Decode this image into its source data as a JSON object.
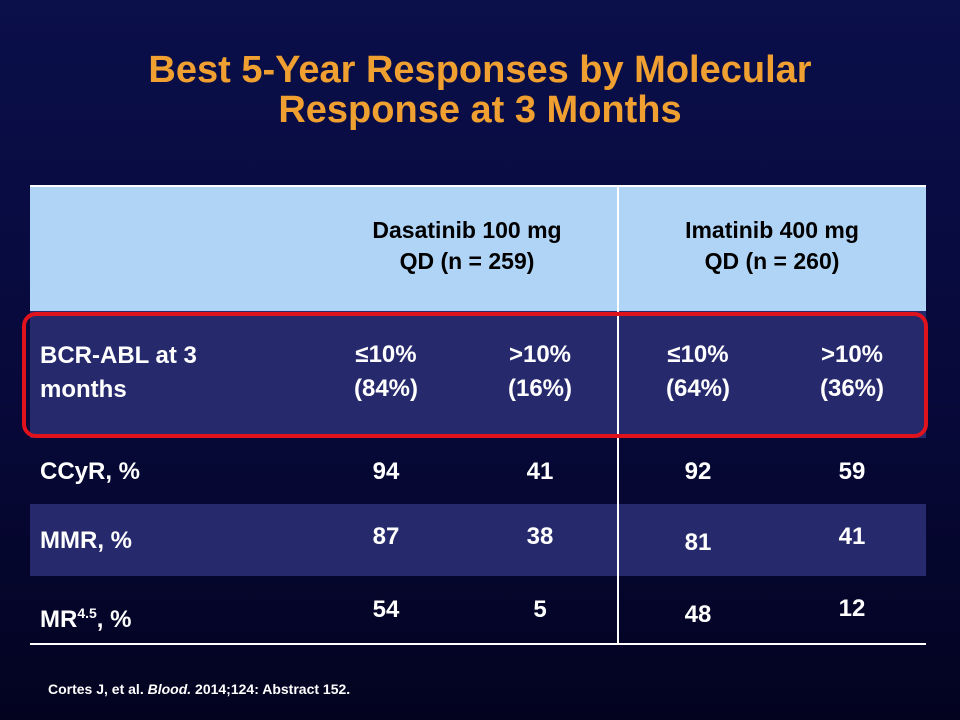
{
  "title": {
    "line1": "Best 5-Year Responses by Molecular",
    "line2": "Response at 3 Months"
  },
  "table": {
    "headers": {
      "dasatinib": {
        "line1": "Dasatinib 100 mg",
        "line2": "QD (n = 259)"
      },
      "imatinib": {
        "line1": "Imatinib 400 mg",
        "line2": "QD (n = 260)"
      }
    },
    "bcr_row": {
      "label_line1": "BCR-ABL at 3",
      "label_line2": "months",
      "cells": [
        {
          "line1": "≤10%",
          "line2": "(84%)"
        },
        {
          "line1": ">10%",
          "line2": "(16%)"
        },
        {
          "line1": "≤10%",
          "line2": "(64%)"
        },
        {
          "line1": ">10%",
          "line2": "(36%)"
        }
      ]
    },
    "rows": [
      {
        "label": "CCyR, %",
        "values": [
          "94",
          "41",
          "92",
          "59"
        ]
      },
      {
        "label": "MMR, %",
        "values": [
          "87",
          "38",
          "81",
          "41"
        ]
      },
      {
        "label_main": "MR",
        "label_sup": "4.5",
        "label_suffix": ", %",
        "values": [
          "54",
          "5",
          "48",
          "12"
        ]
      }
    ]
  },
  "footnote": {
    "prefix": "Cortes J, et al. ",
    "journal": "Blood.",
    "suffix": " 2014;124: Abstract 152."
  }
}
